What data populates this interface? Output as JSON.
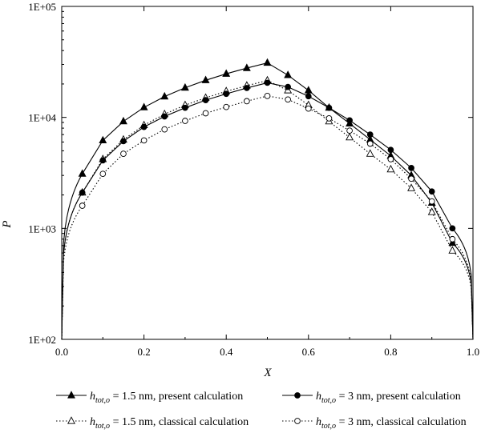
{
  "chart_data": {
    "type": "line",
    "xlabel": "X",
    "ylabel": "P",
    "xlim": [
      0,
      1
    ],
    "ylim": [
      100,
      100000
    ],
    "y_scale": "log",
    "grid": false,
    "x_ticks": [
      "0.0",
      "0.2",
      "0.4",
      "0.6",
      "0.8",
      "1.0"
    ],
    "y_ticks": [
      "1E+02",
      "1E+03",
      "1E+04",
      "1E+05"
    ],
    "legend_position": "bottom",
    "series": [
      {
        "legend_main": "h",
        "legend_sub": "tot,o",
        "legend_rest": " = 1.5 nm, present calculation",
        "marker": "filled-triangle",
        "line": "solid",
        "x": [
          0.05,
          0.1,
          0.15,
          0.2,
          0.25,
          0.3,
          0.35,
          0.4,
          0.45,
          0.5,
          0.55,
          0.6,
          0.65,
          0.7,
          0.75,
          0.8,
          0.85,
          0.9,
          0.95
        ],
        "y": [
          3100,
          6200,
          9200,
          12300,
          15400,
          18500,
          21600,
          24700,
          27800,
          31000,
          24000,
          17500,
          12200,
          8800,
          6300,
          4500,
          3000,
          1700,
          740
        ]
      },
      {
        "legend_main": "h",
        "legend_sub": "tot,o",
        "legend_rest": " = 1.5 nm, classical calculation",
        "marker": "open-triangle",
        "line": "dotted",
        "x": [
          0.05,
          0.1,
          0.15,
          0.2,
          0.25,
          0.3,
          0.35,
          0.4,
          0.45,
          0.5,
          0.55,
          0.6,
          0.65,
          0.7,
          0.75,
          0.8,
          0.85,
          0.9,
          0.95
        ],
        "y": [
          2100,
          4200,
          6300,
          8500,
          10700,
          12900,
          15000,
          17200,
          19300,
          21500,
          17500,
          12900,
          9200,
          6600,
          4700,
          3400,
          2300,
          1400,
          630
        ]
      },
      {
        "legend_main": "h",
        "legend_sub": "tot,o",
        "legend_rest": " = 3 nm, present calculation",
        "marker": "filled-circle",
        "line": "solid",
        "x": [
          0.05,
          0.1,
          0.15,
          0.2,
          0.25,
          0.3,
          0.35,
          0.4,
          0.45,
          0.5,
          0.55,
          0.6,
          0.65,
          0.7,
          0.75,
          0.8,
          0.85,
          0.9,
          0.95
        ],
        "y": [
          2100,
          4100,
          6100,
          8200,
          10200,
          12200,
          14300,
          16300,
          18400,
          20500,
          18800,
          15500,
          12200,
          9400,
          7000,
          5100,
          3500,
          2150,
          1000
        ]
      },
      {
        "legend_main": "h",
        "legend_sub": "tot,o",
        "legend_rest": " = 3 nm, classical calculation",
        "marker": "open-circle",
        "line": "dotted",
        "x": [
          0.05,
          0.1,
          0.15,
          0.2,
          0.25,
          0.3,
          0.35,
          0.4,
          0.45,
          0.5,
          0.55,
          0.6,
          0.65,
          0.7,
          0.75,
          0.8,
          0.85,
          0.9,
          0.95
        ],
        "y": [
          1600,
          3100,
          4700,
          6200,
          7800,
          9300,
          10900,
          12400,
          14000,
          15600,
          14500,
          12000,
          9800,
          7600,
          5800,
          4200,
          2800,
          1750,
          800
        ]
      }
    ]
  }
}
